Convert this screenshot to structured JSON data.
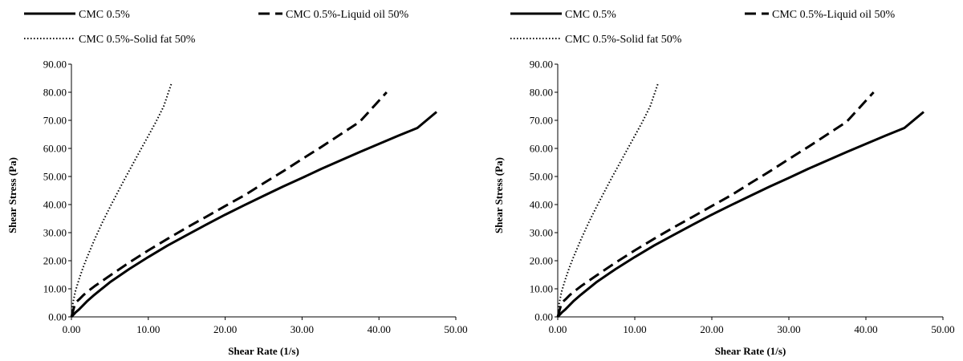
{
  "chart_data": [
    {
      "type": "line",
      "xlabel": "Shear Rate (1/s)",
      "ylabel": "Shear Stress (Pa)",
      "xlim": [
        0,
        50
      ],
      "ylim": [
        0,
        90
      ],
      "x_ticks": [
        "0.00",
        "10.00",
        "20.00",
        "30.00",
        "40.00",
        "50.00"
      ],
      "y_ticks": [
        "0.00",
        "10.00",
        "20.00",
        "30.00",
        "40.00",
        "50.00",
        "60.00",
        "70.00",
        "80.00",
        "90.00"
      ],
      "grid": false,
      "legend_position": "top",
      "series": [
        {
          "name": "CMC 0.5%",
          "style": "solid",
          "color": "#000000",
          "x": [
            0,
            0.5,
            1,
            2,
            3,
            5,
            7.5,
            10,
            12.5,
            15,
            17.5,
            20,
            22.5,
            25,
            27.5,
            30,
            32.5,
            35,
            37.5,
            40,
            42.5,
            45,
            47.5
          ],
          "y": [
            0,
            1.5,
            2.7,
            5.5,
            7.9,
            12.3,
            17.0,
            21.3,
            25.4,
            29.1,
            32.8,
            36.4,
            39.8,
            43.1,
            46.4,
            49.5,
            52.7,
            55.7,
            58.7,
            61.6,
            64.5,
            67.3,
            73.0
          ]
        },
        {
          "name": "CMC 0.5%-Liquid oil 50%",
          "style": "dashed",
          "color": "#000000",
          "x": [
            0,
            0.5,
            1,
            1.5,
            2,
            3,
            5,
            7.5,
            10,
            12.5,
            15,
            17.5,
            20,
            22.5,
            25,
            27.5,
            30,
            32.5,
            35,
            37.5,
            41
          ],
          "y": [
            0,
            5.0,
            6.2,
            7.6,
            8.8,
            10.9,
            14.7,
            19.3,
            23.7,
            27.8,
            31.8,
            35.6,
            39.5,
            43.3,
            47.6,
            51.8,
            56.2,
            60.5,
            65.0,
            69.5,
            80.0
          ]
        },
        {
          "name": "CMC 0.5%-Solid fat 50%",
          "style": "dotted",
          "color": "#000000",
          "x": [
            0,
            0.2,
            0.5,
            1,
            1.5,
            2,
            3,
            4,
            5,
            6,
            7,
            8,
            9,
            10,
            11,
            12,
            13
          ],
          "y": [
            0,
            5.0,
            9.0,
            13.5,
            17.5,
            21.0,
            27.5,
            33.5,
            39.0,
            44.3,
            49.5,
            54.5,
            59.5,
            64.5,
            69.5,
            75.0,
            83.0
          ]
        }
      ]
    },
    {
      "type": "line",
      "xlabel": "Shear Rate (1/s)",
      "ylabel": "Shear Stress (Pa)",
      "xlim": [
        0,
        50
      ],
      "ylim": [
        0,
        90
      ],
      "x_ticks": [
        "0.00",
        "10.00",
        "20.00",
        "30.00",
        "40.00",
        "50.00"
      ],
      "y_ticks": [
        "0.00",
        "10.00",
        "20.00",
        "30.00",
        "40.00",
        "50.00",
        "60.00",
        "70.00",
        "80.00",
        "90.00"
      ],
      "grid": false,
      "legend_position": "top",
      "series": [
        {
          "name": "CMC 0.5%",
          "style": "solid",
          "color": "#000000",
          "x": [
            0,
            0.5,
            1,
            2,
            3,
            5,
            7.5,
            10,
            12.5,
            15,
            17.5,
            20,
            22.5,
            25,
            27.5,
            30,
            32.5,
            35,
            37.5,
            40,
            42.5,
            45,
            47.5
          ],
          "y": [
            0,
            1.5,
            2.7,
            5.5,
            7.9,
            12.3,
            17.0,
            21.3,
            25.4,
            29.1,
            32.8,
            36.4,
            39.8,
            43.1,
            46.4,
            49.5,
            52.7,
            55.7,
            58.7,
            61.6,
            64.5,
            67.3,
            73.0
          ]
        },
        {
          "name": "CMC 0.5%-Liquid oil 50%",
          "style": "dashed",
          "color": "#000000",
          "x": [
            0,
            0.5,
            1,
            1.5,
            2,
            3,
            5,
            7.5,
            10,
            12.5,
            15,
            17.5,
            20,
            22.5,
            25,
            27.5,
            30,
            32.5,
            35,
            37.5,
            41
          ],
          "y": [
            0,
            5.0,
            6.2,
            7.6,
            8.8,
            10.9,
            14.7,
            19.3,
            23.7,
            27.8,
            31.8,
            35.6,
            39.5,
            43.3,
            47.6,
            51.8,
            56.2,
            60.5,
            65.0,
            69.5,
            80.0
          ]
        },
        {
          "name": "CMC 0.5%-Solid fat 50%",
          "style": "dotted",
          "color": "#000000",
          "x": [
            0,
            0.2,
            0.5,
            1,
            1.5,
            2,
            3,
            4,
            5,
            6,
            7,
            8,
            9,
            10,
            11,
            12,
            13
          ],
          "y": [
            0,
            5.0,
            9.0,
            13.5,
            17.5,
            21.0,
            27.5,
            33.5,
            39.0,
            44.3,
            49.5,
            54.5,
            59.5,
            64.5,
            69.5,
            75.0,
            83.0
          ]
        }
      ]
    }
  ]
}
